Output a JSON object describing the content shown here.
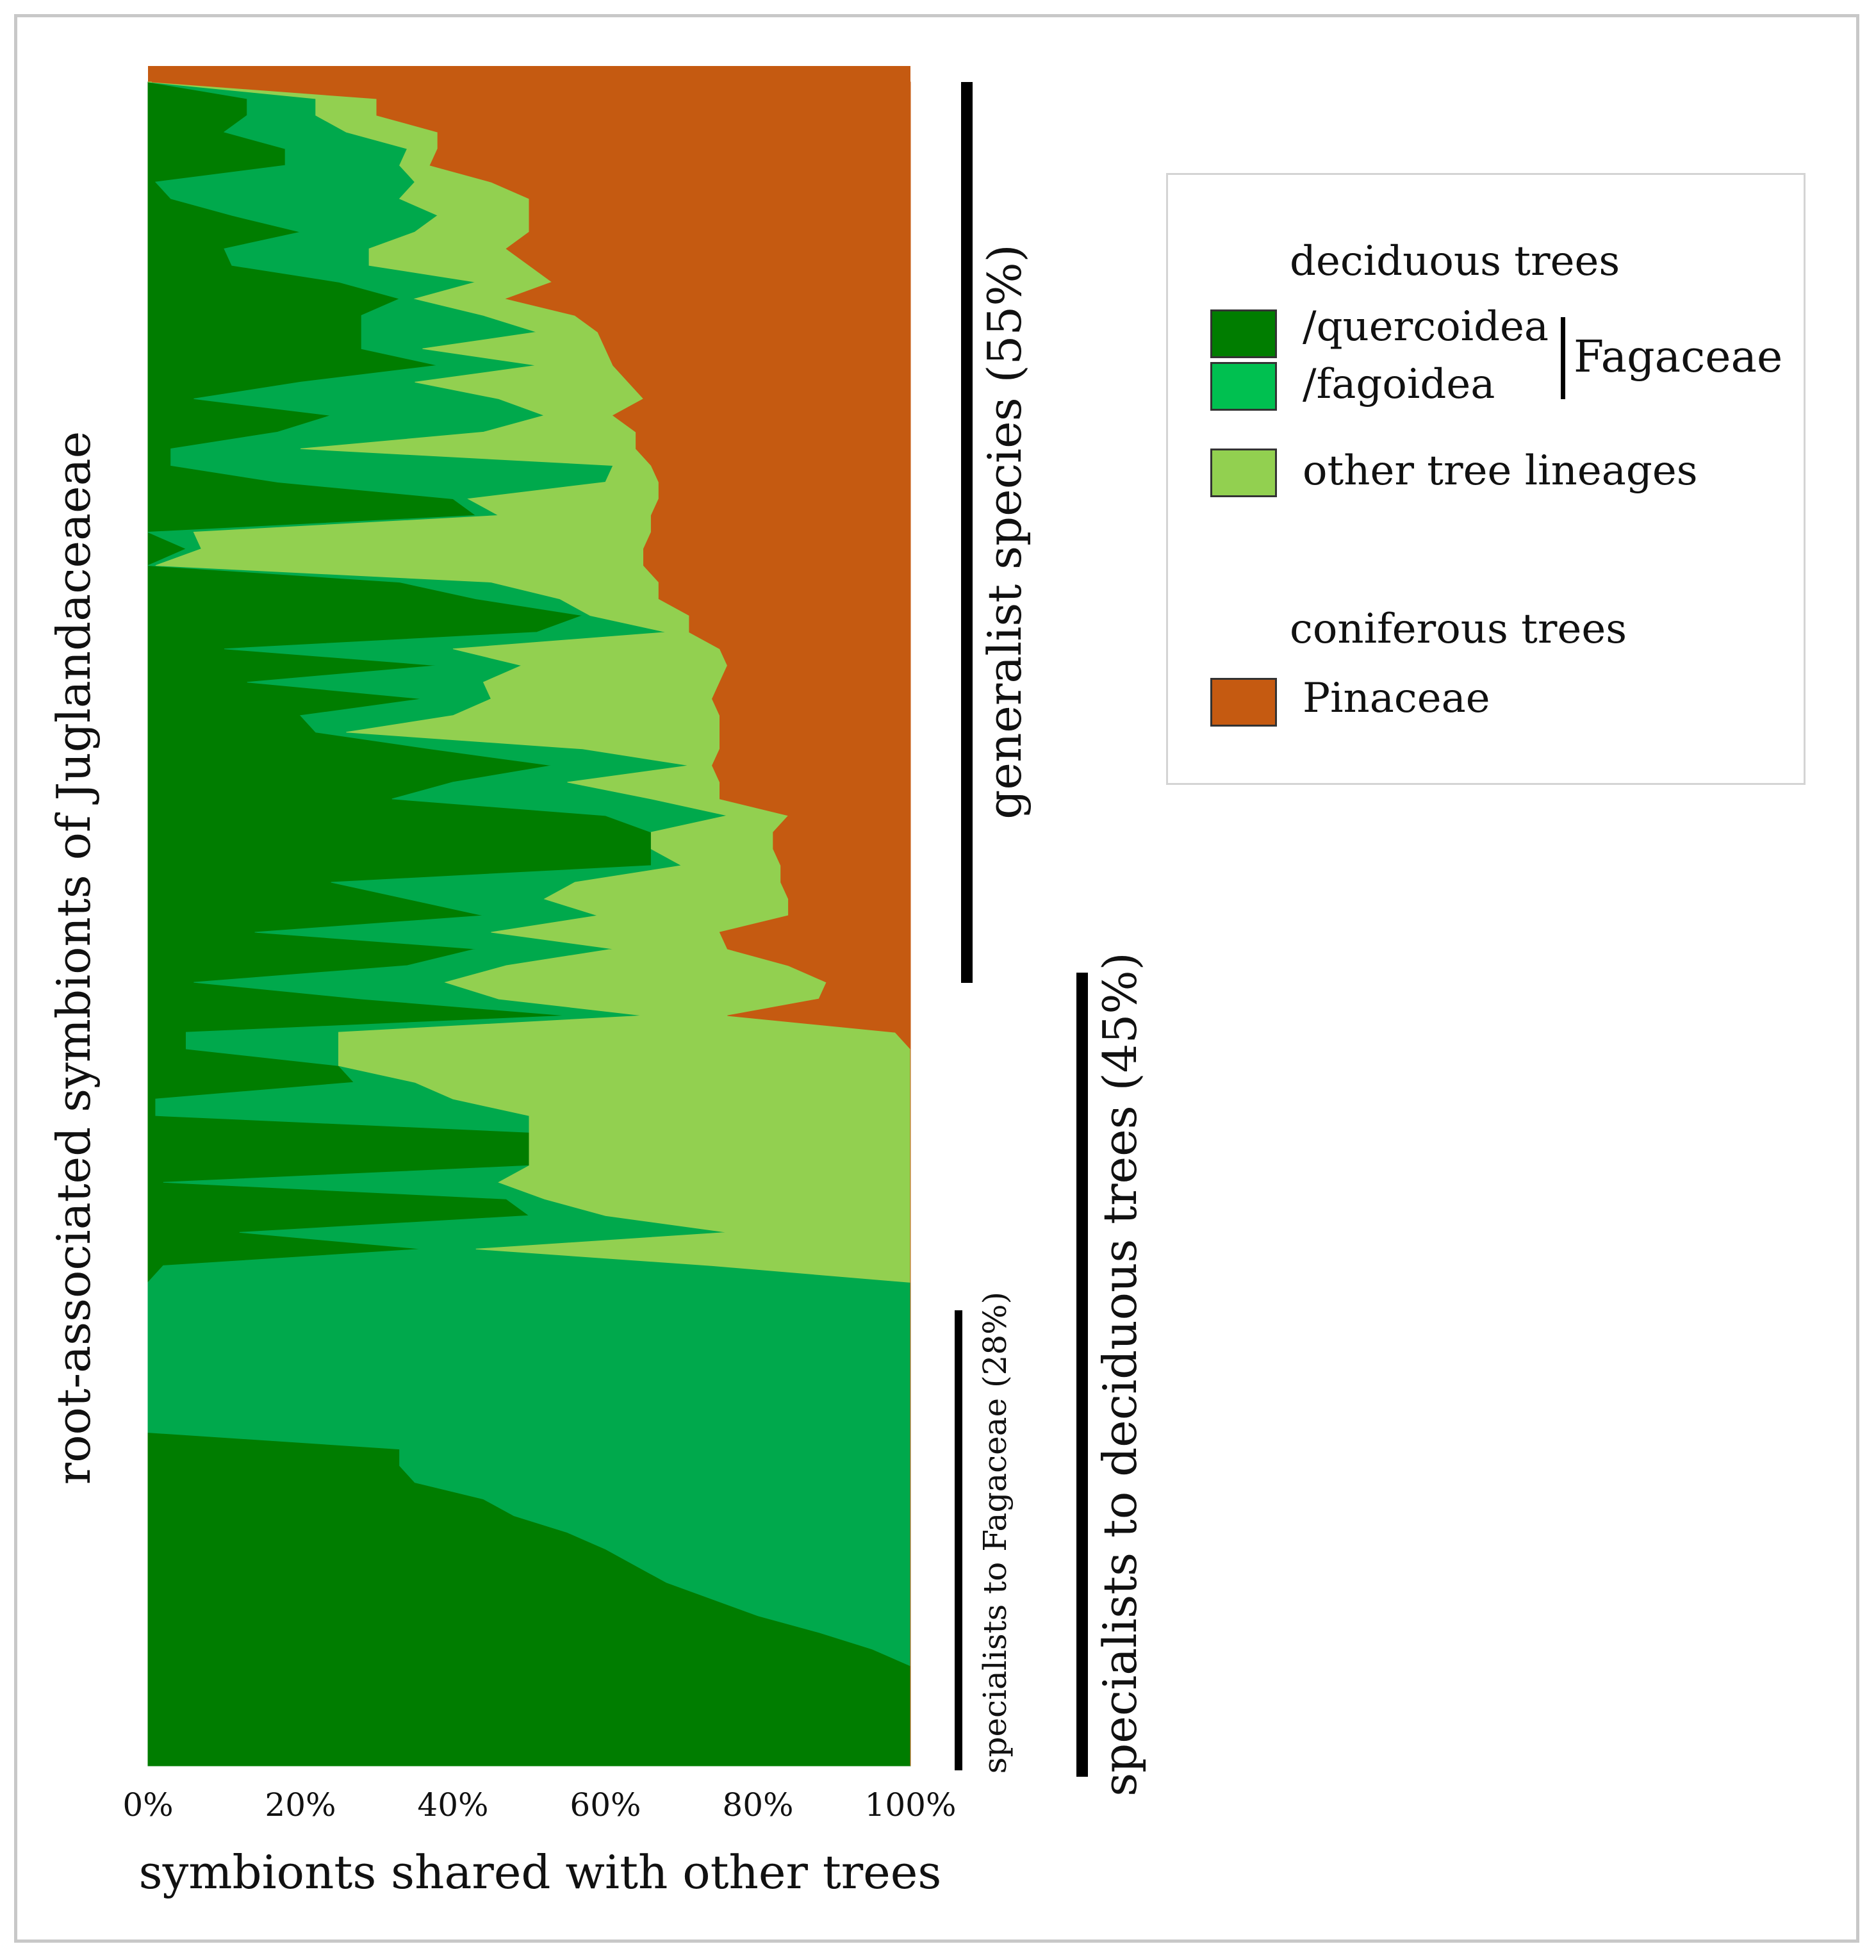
{
  "colors": {
    "quercoidea": "#007d00",
    "fagoidea": "#00a94c",
    "other": "#92d050",
    "pinaceae": "#c55a11"
  },
  "chart_data": {
    "type": "area",
    "orientation": "horizontal-stacked-100",
    "xlabel": "symbionts shared with other trees",
    "ylabel": "root-associated symbionts of Juglandaceaeae",
    "xlim": [
      0,
      100
    ],
    "xticks": [
      "0%",
      "20%",
      "40%",
      "60%",
      "80%",
      "100%"
    ],
    "series_order": [
      "quercoidea",
      "fagoidea",
      "other",
      "pinaceae"
    ],
    "rows": [
      [
        0,
        0,
        0.5,
        99.5
      ],
      [
        13,
        9,
        8,
        70
      ],
      [
        13,
        9,
        8,
        70
      ],
      [
        10,
        16,
        12,
        62
      ],
      [
        18,
        16,
        4,
        62
      ],
      [
        18,
        15,
        4,
        63
      ],
      [
        1,
        34,
        10,
        55
      ],
      [
        3,
        30,
        17,
        50
      ],
      [
        11,
        27,
        12,
        50
      ],
      [
        20,
        15,
        15,
        50
      ],
      [
        10,
        19,
        18,
        53
      ],
      [
        11,
        18,
        21,
        50
      ],
      [
        25,
        18,
        10,
        47
      ],
      [
        33,
        2,
        12,
        53
      ],
      [
        28,
        16,
        12,
        44
      ],
      [
        28,
        23,
        8,
        41
      ],
      [
        28,
        8,
        24,
        40
      ],
      [
        38,
        13,
        10,
        39
      ],
      [
        20,
        15,
        28,
        37
      ],
      [
        6,
        40,
        19,
        35
      ],
      [
        24,
        28,
        9,
        39
      ],
      [
        17,
        27,
        20,
        36
      ],
      [
        3,
        17,
        44,
        36
      ],
      [
        3,
        58,
        5,
        34
      ],
      [
        17,
        43,
        7,
        33
      ],
      [
        40,
        2,
        25,
        33
      ],
      [
        43,
        3,
        20,
        34
      ],
      [
        0,
        6,
        60,
        34
      ],
      [
        5,
        2,
        58,
        35
      ],
      [
        0,
        1,
        64,
        35
      ],
      [
        33,
        12,
        22,
        33
      ],
      [
        43,
        11,
        13,
        33
      ],
      [
        57,
        1,
        13,
        29
      ],
      [
        51,
        17,
        3,
        29
      ],
      [
        10,
        30,
        35,
        25
      ],
      [
        38,
        11,
        27,
        24
      ],
      [
        13,
        31,
        31,
        25
      ],
      [
        36,
        9,
        29,
        26
      ],
      [
        20,
        20,
        35,
        25
      ],
      [
        22,
        4,
        49,
        25
      ],
      [
        37,
        20,
        18,
        25
      ],
      [
        53,
        18,
        3,
        26
      ],
      [
        40,
        15,
        20,
        25
      ],
      [
        32,
        34,
        9,
        25
      ],
      [
        60,
        16,
        8,
        16
      ],
      [
        66,
        0,
        16,
        18
      ],
      [
        66,
        0,
        16,
        18
      ],
      [
        66,
        4,
        13,
        17
      ],
      [
        24,
        32,
        27,
        17
      ],
      [
        34,
        18,
        32,
        16
      ],
      [
        44,
        15,
        25,
        16
      ],
      [
        14,
        31,
        30,
        25
      ],
      [
        43,
        18,
        15,
        24
      ],
      [
        34,
        13,
        37,
        16
      ],
      [
        6,
        33,
        50,
        11
      ],
      [
        28,
        18,
        42,
        12
      ],
      [
        55,
        10,
        11,
        24
      ],
      [
        5,
        20,
        73,
        2
      ],
      [
        5,
        20,
        75,
        0
      ],
      [
        25,
        0,
        75,
        0
      ],
      [
        27,
        8,
        65,
        0
      ],
      [
        1,
        39,
        60,
        0
      ],
      [
        1,
        49,
        50,
        0
      ],
      [
        50,
        0,
        50,
        0
      ],
      [
        50,
        0,
        50,
        0
      ],
      [
        50,
        0,
        50,
        0
      ],
      [
        2,
        44,
        54,
        0
      ],
      [
        47,
        5,
        48,
        0
      ],
      [
        50,
        10,
        40,
        0
      ],
      [
        12,
        64,
        24,
        0
      ],
      [
        36,
        7,
        57,
        0
      ],
      [
        2,
        72,
        26,
        0
      ],
      [
        0,
        100,
        0,
        0
      ],
      [
        0,
        100,
        0,
        0
      ],
      [
        0,
        100,
        0,
        0
      ],
      [
        0,
        100,
        0,
        0
      ],
      [
        0,
        100,
        0,
        0
      ],
      [
        0,
        100,
        0,
        0
      ],
      [
        0,
        100,
        0,
        0
      ],
      [
        0,
        100,
        0,
        0
      ],
      [
        0,
        100,
        0,
        0
      ],
      [
        0,
        100,
        0,
        0
      ],
      [
        33,
        67,
        0,
        0
      ],
      [
        33,
        67,
        0,
        0
      ],
      [
        35,
        65,
        0,
        0
      ],
      [
        44,
        56,
        0,
        0
      ],
      [
        48,
        52,
        0,
        0
      ],
      [
        55,
        45,
        0,
        0
      ],
      [
        60,
        40,
        0,
        0
      ],
      [
        64,
        36,
        0,
        0
      ],
      [
        68,
        32,
        0,
        0
      ],
      [
        74,
        26,
        0,
        0
      ],
      [
        80,
        20,
        0,
        0
      ],
      [
        88,
        12,
        0,
        0
      ],
      [
        95,
        5,
        0,
        0
      ],
      [
        100,
        0,
        0,
        0
      ],
      [
        100,
        0,
        0,
        0
      ],
      [
        100,
        0,
        0,
        0
      ],
      [
        100,
        0,
        0,
        0
      ],
      [
        100,
        0,
        0,
        0
      ],
      [
        100,
        0,
        0,
        0
      ],
      [
        100,
        0,
        0,
        0
      ]
    ]
  },
  "annotations": {
    "generalist": "generalist species (55%)",
    "deciduous": "specialists to deciduous trees (45%)",
    "fagaceae": "specialists to Fagaceae (28%)"
  },
  "legend": {
    "deciduous_header": "deciduous trees",
    "quercoidea": "/quercoidea",
    "fagoidea": "/fagoidea",
    "fagaceae": "Fagaceae",
    "other": "other  tree lineages",
    "coniferous_header": "coniferous trees",
    "pinaceae": "Pinaceae"
  }
}
